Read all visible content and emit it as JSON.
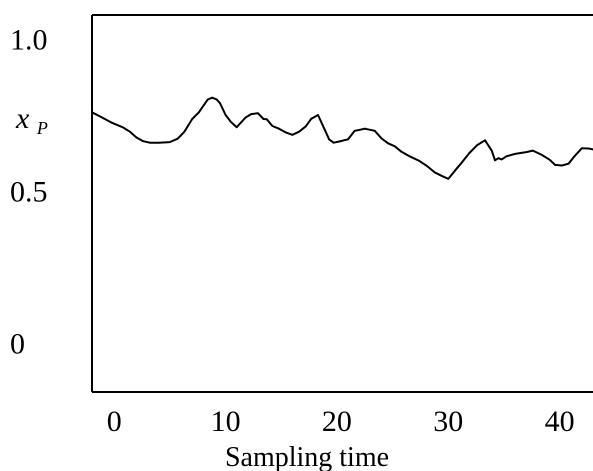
{
  "chart_data": {
    "type": "line",
    "title": "",
    "xlabel": "Sampling time",
    "ylabel": {
      "main": "x",
      "subscript": "P"
    },
    "xlim": [
      -2,
      43
    ],
    "ylim": [
      -0.16,
      1.08
    ],
    "x_ticks": [
      "0",
      "10",
      "20",
      "30",
      "40"
    ],
    "y_ticks": [
      "1.0",
      "0.5",
      "0"
    ],
    "grid": false,
    "series": [
      {
        "line_color": "#000000",
        "x": [
          -2,
          -1.2,
          -0.3,
          0.8,
          1.4,
          2,
          2.6,
          3.2,
          4,
          5,
          5.7,
          6.3,
          7,
          7.6,
          7.9,
          8.4,
          8.8,
          9.2,
          9.5,
          10,
          10.5,
          11,
          11.8,
          12.3,
          12.9,
          13.4,
          13.7,
          14.2,
          14.8,
          15.4,
          16,
          16.6,
          17.2,
          17.7,
          18.3,
          18.9,
          19.3,
          19.7,
          20.2,
          21,
          21.6,
          21.9,
          22.5,
          23.4,
          24,
          24.6,
          25.2,
          25.8,
          26.6,
          27.4,
          28.1,
          28.8,
          29.4,
          30,
          30.6,
          31.2,
          31.9,
          32.6,
          33.3,
          33.9,
          34.2,
          34.5,
          34.8,
          35.2,
          36,
          37,
          37.6,
          38.4,
          39.1,
          39.6,
          40.2,
          40.8,
          41.3,
          42,
          42.6,
          43
        ],
        "y": [
          0.76,
          0.745,
          0.727,
          0.71,
          0.696,
          0.677,
          0.665,
          0.66,
          0.66,
          0.662,
          0.673,
          0.696,
          0.738,
          0.76,
          0.776,
          0.802,
          0.808,
          0.802,
          0.79,
          0.751,
          0.727,
          0.711,
          0.743,
          0.754,
          0.757,
          0.738,
          0.737,
          0.715,
          0.706,
          0.694,
          0.686,
          0.696,
          0.714,
          0.739,
          0.751,
          0.703,
          0.671,
          0.66,
          0.664,
          0.671,
          0.699,
          0.701,
          0.706,
          0.699,
          0.674,
          0.658,
          0.648,
          0.63,
          0.614,
          0.6,
          0.583,
          0.562,
          0.551,
          0.541,
          0.568,
          0.594,
          0.626,
          0.652,
          0.668,
          0.634,
          0.602,
          0.609,
          0.605,
          0.615,
          0.623,
          0.629,
          0.634,
          0.62,
          0.604,
          0.587,
          0.585,
          0.591,
          0.614,
          0.642,
          0.641,
          0.638
        ]
      }
    ]
  }
}
